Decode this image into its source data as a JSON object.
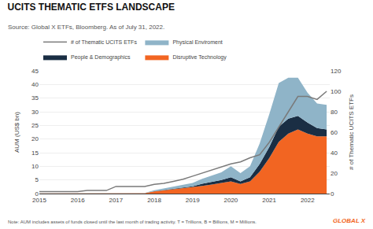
{
  "chart_data": {
    "type": "area",
    "title": "UCITS THEMATIC ETFS LANDSCAPE",
    "subtitle": "Source: Global X ETFs, Bloomberg. As of July 31, 2022.",
    "annotations": [
      {
        "text": "Note: AUM includes assets of funds closed until the last month of trading activity. T = Trillions, B = Billions, M = Millions."
      },
      {
        "text": "GLOBAL X",
        "color": "#f26522"
      }
    ],
    "ylabel": "AUM (US$ bn)",
    "y2label": "# of Thematic UCITS ETFs",
    "stacked": true,
    "grid": true,
    "legend": "top",
    "x": [
      2015.0,
      2015.25,
      2015.5,
      2015.75,
      2016.0,
      2016.25,
      2016.5,
      2016.75,
      2017.0,
      2017.25,
      2017.5,
      2017.75,
      2018.0,
      2018.25,
      2018.5,
      2018.75,
      2019.0,
      2019.25,
      2019.5,
      2019.75,
      2020.0,
      2020.25,
      2020.5,
      2020.75,
      2021.0,
      2021.25,
      2021.5,
      2021.75,
      2022.0,
      2022.25,
      2022.5
    ],
    "xlim": [
      2015,
      2022.58
    ],
    "xticks": [
      2015,
      2016,
      2017,
      2018,
      2019,
      2020,
      2021,
      2022
    ],
    "ylim": [
      0,
      45
    ],
    "yticks": [
      0,
      5,
      10,
      15,
      20,
      25,
      30,
      35,
      40,
      45
    ],
    "y2lim": [
      0,
      120
    ],
    "y2ticks": [
      0,
      20,
      40,
      60,
      80,
      100,
      120
    ],
    "series": [
      {
        "name": "Disruptive Technology",
        "type": "area",
        "color": "#f26522",
        "values": [
          0.05,
          0.05,
          0.05,
          0.05,
          0.08,
          0.08,
          0.08,
          0.08,
          0.08,
          0.15,
          0.15,
          0.15,
          0.8,
          1.2,
          1.5,
          1.8,
          2.2,
          2.8,
          3.3,
          3.8,
          4.5,
          3.5,
          4.5,
          8.0,
          13.0,
          19.0,
          22.0,
          23.5,
          22.0,
          21.0,
          21.0
        ]
      },
      {
        "name": "People & Demographics",
        "type": "area",
        "color": "#1a2e44",
        "values": [
          0.02,
          0.02,
          0.02,
          0.02,
          0.02,
          0.02,
          0.02,
          0.02,
          0.02,
          0.02,
          0.02,
          0.02,
          0.1,
          0.2,
          0.3,
          0.4,
          0.5,
          0.8,
          1.0,
          1.2,
          1.5,
          1.0,
          1.5,
          2.8,
          4.0,
          5.5,
          5.5,
          5.0,
          4.0,
          3.0,
          2.5
        ]
      },
      {
        "name": "Physical Enviroment",
        "type": "area",
        "color": "#8fb4c8",
        "values": [
          0.05,
          0.05,
          0.05,
          0.05,
          0.05,
          0.05,
          0.05,
          0.05,
          0.05,
          0.05,
          0.05,
          0.05,
          0.3,
          0.5,
          0.8,
          1.0,
          1.2,
          1.8,
          2.2,
          2.8,
          4.0,
          3.0,
          4.0,
          7.5,
          12.0,
          16.0,
          15.0,
          14.0,
          11.0,
          9.0,
          9.0
        ]
      },
      {
        "name": "# of Thematic UCITS ETFs",
        "type": "line",
        "axis": "y2",
        "color": "#7a7a7a",
        "values": [
          2,
          2,
          2,
          2,
          2,
          3,
          3,
          3,
          7,
          7,
          7,
          7,
          9,
          10,
          12,
          14,
          17,
          20,
          23,
          26,
          29,
          31,
          35,
          38,
          50,
          65,
          80,
          95,
          95,
          92,
          100
        ]
      }
    ]
  }
}
